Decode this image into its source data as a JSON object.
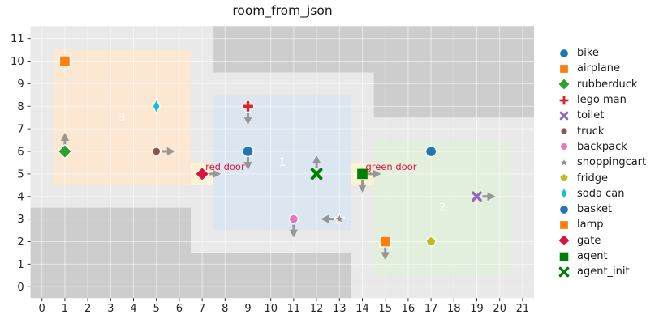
{
  "title": "room_from_json",
  "chart_data": {
    "type": "scatter",
    "title": "room_from_json",
    "xlim": [
      -0.5,
      21.5
    ],
    "ylim": [
      -0.5,
      11.55
    ],
    "xticks": [
      0,
      1,
      2,
      3,
      4,
      5,
      6,
      7,
      8,
      9,
      10,
      11,
      12,
      13,
      14,
      15,
      16,
      17,
      18,
      19,
      20,
      21
    ],
    "yticks": [
      0,
      1,
      2,
      3,
      4,
      5,
      6,
      7,
      8,
      9,
      10,
      11
    ],
    "grid": true,
    "legend_position": "right-outside",
    "colors": {
      "plot_bg": "#e9e9e9",
      "wall": "#cdcdcd",
      "grid": "rgba(255,255,255,0.55)",
      "tick": "#333333",
      "tick_label": "#262626",
      "title": "#1a1a1a",
      "arrow": "#8c8c8c",
      "door_label": "#dc143c",
      "room_label": "#ffffff",
      "door_rect": "#fcf3d4"
    },
    "walls": [
      {
        "x0": -0.5,
        "y0": -0.5,
        "x1": 6.5,
        "y1": 3.5
      },
      {
        "x0": 6.5,
        "y0": -0.5,
        "x1": 13.5,
        "y1": 1.5
      },
      {
        "x0": 7.5,
        "y0": 9.5,
        "x1": 21.5,
        "y1": 11.55
      },
      {
        "x0": 14.5,
        "y0": 7.5,
        "x1": 21.5,
        "y1": 9.5
      }
    ],
    "rooms": [
      {
        "label": "1",
        "x0": 7.5,
        "y0": 2.5,
        "x1": 13.5,
        "y1": 8.5,
        "color": "#dce6f0"
      },
      {
        "label": "2",
        "x0": 14.5,
        "y0": 0.5,
        "x1": 20.5,
        "y1": 6.5,
        "color": "#e2efdd"
      },
      {
        "label": "3",
        "x0": 0.5,
        "y0": 4.5,
        "x1": 6.5,
        "y1": 10.5,
        "color": "#fce8d2"
      }
    ],
    "doors": [
      {
        "label": "red door",
        "x": 7,
        "y": 5
      },
      {
        "label": "green door",
        "x": 14,
        "y": 5
      }
    ],
    "points": [
      {
        "name": "bike",
        "x": 9,
        "y": 6,
        "marker": "circle",
        "color": "#1f77b4",
        "size": 13,
        "arrows": [
          "down"
        ]
      },
      {
        "name": "airplane",
        "x": 1,
        "y": 10,
        "marker": "square",
        "color": "#ff7f0e",
        "size": 13,
        "arrows": []
      },
      {
        "name": "rubberduck",
        "x": 1,
        "y": 6,
        "marker": "diamond",
        "color": "#2ca02c",
        "size": 15,
        "arrows": [
          "up"
        ]
      },
      {
        "name": "lego man",
        "x": 9,
        "y": 8,
        "marker": "plus",
        "color": "#d62728",
        "size": 14,
        "arrows": [
          "down"
        ]
      },
      {
        "name": "toilet",
        "x": 19,
        "y": 4,
        "marker": "x",
        "color": "#9467bd",
        "size": 11,
        "arrows": [
          "right"
        ]
      },
      {
        "name": "truck",
        "x": 5,
        "y": 6,
        "marker": "circle",
        "color": "#8c564b",
        "size": 10,
        "arrows": [
          "right"
        ]
      },
      {
        "name": "backpack",
        "x": 11,
        "y": 3,
        "marker": "circle",
        "color": "#e377c2",
        "size": 11,
        "arrows": [
          "down"
        ]
      },
      {
        "name": "shoppingcart",
        "x": 13,
        "y": 3,
        "marker": "star",
        "color": "#8a8a8a",
        "size": 12,
        "arrows": [
          "left"
        ]
      },
      {
        "name": "fridge",
        "x": 17,
        "y": 2,
        "marker": "pentagon",
        "color": "#bcbd22",
        "size": 12,
        "arrows": []
      },
      {
        "name": "soda can",
        "x": 5,
        "y": 8,
        "marker": "thin-diamond",
        "color": "#17becf",
        "size": 15,
        "arrows": []
      },
      {
        "name": "basket",
        "x": 17,
        "y": 6,
        "marker": "circle",
        "color": "#1f77b4",
        "size": 13,
        "arrows": []
      },
      {
        "name": "lamp",
        "x": 15,
        "y": 2,
        "marker": "square",
        "color": "#ff7f0e",
        "size": 13,
        "arrows": [
          "down"
        ]
      },
      {
        "name": "gate",
        "x": 7,
        "y": 5,
        "marker": "diamond",
        "color": "#dc143c",
        "size": 15,
        "arrows": [
          "right"
        ]
      },
      {
        "name": "agent",
        "x": 14,
        "y": 5,
        "marker": "square",
        "color": "#008000",
        "size": 14,
        "arrows": [
          "right",
          "down"
        ]
      },
      {
        "name": "agent_init",
        "x": 12,
        "y": 5,
        "marker": "x",
        "color": "#008000",
        "size": 13,
        "arrows": [
          "up"
        ]
      }
    ]
  }
}
